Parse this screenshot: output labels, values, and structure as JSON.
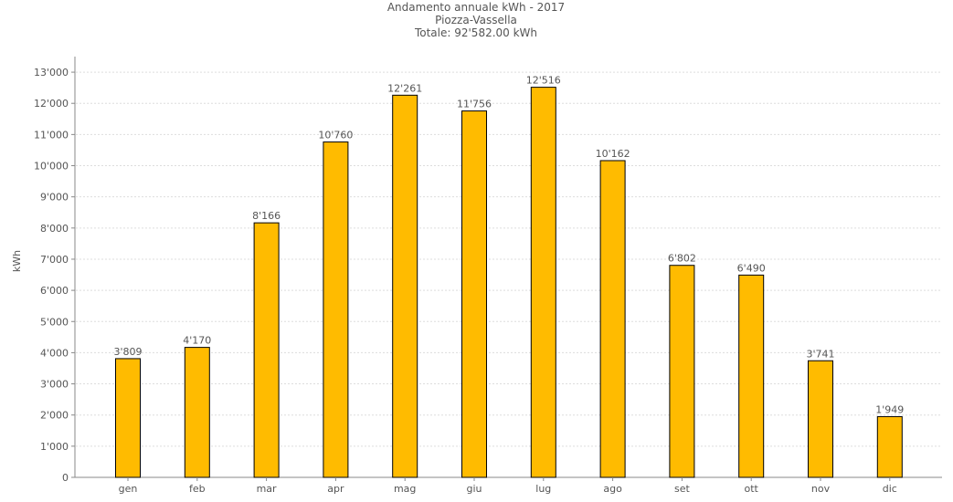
{
  "chart_data": {
    "type": "bar",
    "title": "Andamento annuale kWh - 2017",
    "subtitle": "Piozza-Vassella",
    "total": "Totale: 92'582.00 kWh",
    "ylabel": "kWh",
    "xlabel": "",
    "ylim": [
      0,
      13500
    ],
    "grid": true,
    "legend": "none",
    "bar_color": "#FFBB00",
    "bar_edge_color": "#000000",
    "categories": [
      "gen",
      "feb",
      "mar",
      "apr",
      "mag",
      "giu",
      "lug",
      "ago",
      "set",
      "ott",
      "nov",
      "dic"
    ],
    "values": [
      3809,
      4170,
      8166,
      10760,
      12261,
      11756,
      12516,
      10162,
      6802,
      6490,
      3741,
      1949
    ],
    "value_labels": [
      "3'809",
      "4'170",
      "8'166",
      "10'760",
      "12'261",
      "11'756",
      "12'516",
      "10'162",
      "6'802",
      "6'490",
      "3'741",
      "1'949"
    ],
    "y_ticks": [
      0,
      1000,
      2000,
      3000,
      4000,
      5000,
      6000,
      7000,
      8000,
      9000,
      10000,
      11000,
      12000,
      13000
    ],
    "y_tick_labels": [
      "0",
      "1'000",
      "2'000",
      "3'000",
      "4'000",
      "5'000",
      "6'000",
      "7'000",
      "8'000",
      "9'000",
      "10'000",
      "11'000",
      "12'000",
      "13'000"
    ]
  }
}
